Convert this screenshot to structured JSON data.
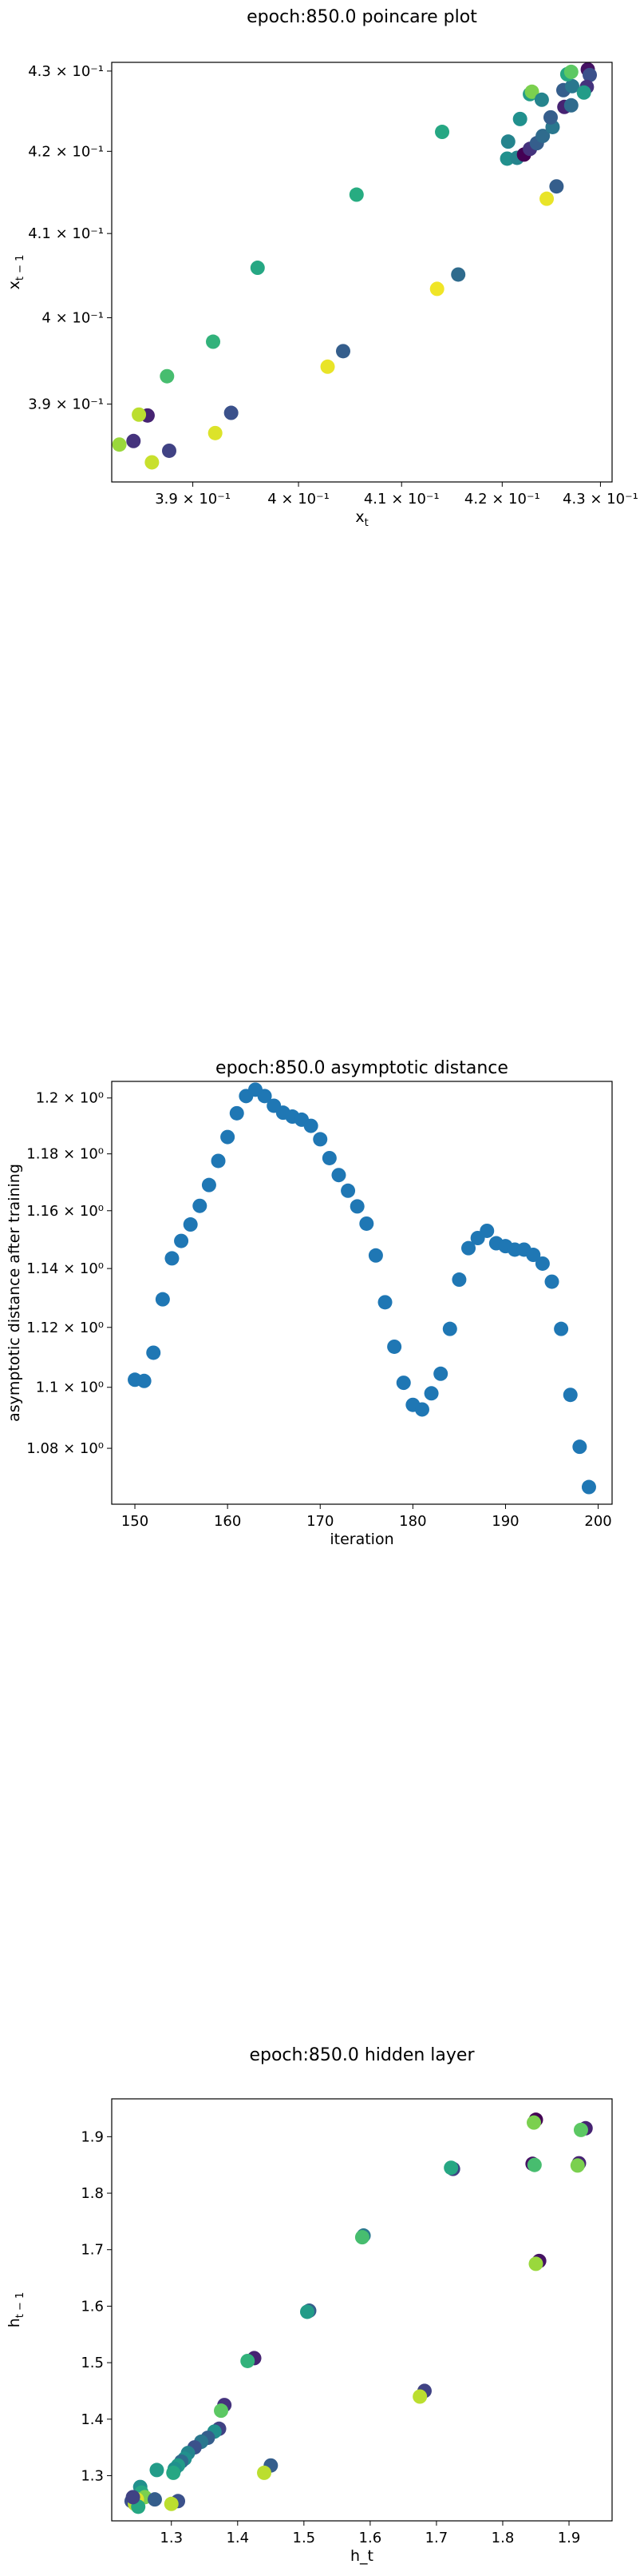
{
  "charts": [
    {
      "title": "epoch:850.0 poincare plot",
      "xlabel_base": "x",
      "xlabel_sub": "t",
      "ylabel_base": "x",
      "ylabel_sub": "t − 1",
      "xticks": [
        "3.9 × 10⁻¹",
        "4 × 10⁻¹",
        "4.1 × 10⁻¹",
        "4.2 × 10⁻¹",
        "4.3 × 10⁻¹"
      ],
      "yticks": [
        "4.3 × 10⁻¹",
        "4.2 × 10⁻¹",
        "4.1 × 10⁻¹",
        "4 × 10⁻¹",
        "3.9 × 10⁻¹"
      ]
    },
    {
      "title": "epoch:850.0 asymptotic distance",
      "xlabel": "iteration",
      "ylabel": "asymptotic distance after training",
      "xticks": [
        "150",
        "160",
        "170",
        "180",
        "190",
        "200"
      ],
      "yticks": [
        "1.2 × 10⁰",
        "1.18 × 10⁰",
        "1.16 × 10⁰",
        "1.14 × 10⁰",
        "1.12 × 10⁰",
        "1.1 × 10⁰",
        "1.08 × 10⁰"
      ]
    },
    {
      "title": "epoch:850.0 hidden layer",
      "xlabel": "h_t",
      "ylabel_base": "h",
      "ylabel_sub": "t − 1",
      "xticks": [
        "1.3",
        "1.4",
        "1.5",
        "1.6",
        "1.7",
        "1.8",
        "1.9"
      ],
      "yticks": [
        "1.9",
        "1.8",
        "1.7",
        "1.6",
        "1.5",
        "1.4",
        "1.3"
      ]
    }
  ],
  "chart_data": [
    {
      "type": "scatter",
      "title": "epoch:850.0 poincare plot",
      "xlabel": "x_t",
      "ylabel": "x_{t-1}",
      "xscale": "log",
      "yscale": "log",
      "xlim": [
        0.3825,
        0.4312
      ],
      "ylim": [
        0.3812,
        0.4311
      ],
      "colormap": "viridis",
      "points": [
        {
          "x": 0.3845,
          "y": 0.3858,
          "c": 0.15
        },
        {
          "x": 0.3858,
          "y": 0.3887,
          "c": 0.1
        },
        {
          "x": 0.3878,
          "y": 0.3847,
          "c": 0.2
        },
        {
          "x": 0.3832,
          "y": 0.3854,
          "c": 0.85
        },
        {
          "x": 0.385,
          "y": 0.3888,
          "c": 0.9
        },
        {
          "x": 0.3862,
          "y": 0.3834,
          "c": 0.92
        },
        {
          "x": 0.3876,
          "y": 0.3932,
          "c": 0.7
        },
        {
          "x": 0.3919,
          "y": 0.3972,
          "c": 0.65
        },
        {
          "x": 0.3921,
          "y": 0.3867,
          "c": 0.95
        },
        {
          "x": 0.3936,
          "y": 0.389,
          "c": 0.25
        },
        {
          "x": 0.3961,
          "y": 0.4059,
          "c": 0.6
        },
        {
          "x": 0.4028,
          "y": 0.3943,
          "c": 0.97
        },
        {
          "x": 0.4043,
          "y": 0.3961,
          "c": 0.3
        },
        {
          "x": 0.4056,
          "y": 0.4147,
          "c": 0.62
        },
        {
          "x": 0.4135,
          "y": 0.4034,
          "c": 0.98
        },
        {
          "x": 0.414,
          "y": 0.4224,
          "c": 0.6
        },
        {
          "x": 0.4156,
          "y": 0.4051,
          "c": 0.35
        },
        {
          "x": 0.4206,
          "y": 0.4212,
          "c": 0.45
        },
        {
          "x": 0.4205,
          "y": 0.4191,
          "c": 0.5
        },
        {
          "x": 0.4215,
          "y": 0.4192,
          "c": 0.45
        },
        {
          "x": 0.4222,
          "y": 0.4196,
          "c": 0.0
        },
        {
          "x": 0.4228,
          "y": 0.4203,
          "c": 0.15
        },
        {
          "x": 0.4235,
          "y": 0.421,
          "c": 0.3
        },
        {
          "x": 0.4241,
          "y": 0.4219,
          "c": 0.35
        },
        {
          "x": 0.4251,
          "y": 0.423,
          "c": 0.4
        },
        {
          "x": 0.4218,
          "y": 0.424,
          "c": 0.5
        },
        {
          "x": 0.4228,
          "y": 0.4271,
          "c": 0.55
        },
        {
          "x": 0.423,
          "y": 0.4274,
          "c": 0.8
        },
        {
          "x": 0.424,
          "y": 0.4264,
          "c": 0.45
        },
        {
          "x": 0.4262,
          "y": 0.4276,
          "c": 0.3
        },
        {
          "x": 0.4271,
          "y": 0.4281,
          "c": 0.4
        },
        {
          "x": 0.4266,
          "y": 0.4296,
          "c": 0.6
        },
        {
          "x": 0.427,
          "y": 0.4299,
          "c": 0.75
        },
        {
          "x": 0.4287,
          "y": 0.4302,
          "c": 0.05
        },
        {
          "x": 0.4289,
          "y": 0.4295,
          "c": 0.25
        },
        {
          "x": 0.4286,
          "y": 0.428,
          "c": 0.15
        },
        {
          "x": 0.4283,
          "y": 0.4273,
          "c": 0.55
        },
        {
          "x": 0.4263,
          "y": 0.4255,
          "c": 0.1
        },
        {
          "x": 0.427,
          "y": 0.4257,
          "c": 0.35
        },
        {
          "x": 0.4249,
          "y": 0.4242,
          "c": 0.3
        },
        {
          "x": 0.4255,
          "y": 0.4157,
          "c": 0.3
        },
        {
          "x": 0.4245,
          "y": 0.4142,
          "c": 0.97
        }
      ]
    },
    {
      "type": "scatter",
      "title": "epoch:850.0 asymptotic distance",
      "xlabel": "iteration",
      "ylabel": "asymptotic distance after training",
      "yscale": "log",
      "xlim": [
        147.5,
        201.5
      ],
      "ylim": [
        1.062,
        1.206
      ],
      "color": "#1f77b4",
      "x": [
        150,
        151,
        152,
        153,
        154,
        155,
        156,
        157,
        158,
        159,
        160,
        161,
        162,
        163,
        164,
        165,
        166,
        167,
        168,
        169,
        170,
        171,
        172,
        173,
        174,
        175,
        176,
        177,
        178,
        179,
        180,
        181,
        182,
        183,
        184,
        185,
        186,
        187,
        188,
        189,
        190,
        191,
        192,
        193,
        194,
        195,
        196,
        197,
        198,
        199
      ],
      "y": [
        1.1025,
        1.1021,
        1.1115,
        1.1295,
        1.1435,
        1.1495,
        1.1552,
        1.1617,
        1.169,
        1.1775,
        1.186,
        1.1945,
        1.2007,
        1.203,
        1.2007,
        1.1972,
        1.1947,
        1.1933,
        1.1922,
        1.19,
        1.1852,
        1.1785,
        1.1725,
        1.167,
        1.1615,
        1.1555,
        1.1445,
        1.1285,
        1.1135,
        1.1015,
        1.0942,
        1.0927,
        1.098,
        1.1045,
        1.1195,
        1.1362,
        1.147,
        1.1505,
        1.153,
        1.1487,
        1.1477,
        1.1465,
        1.1465,
        1.1447,
        1.1417,
        1.1355,
        1.1195,
        1.0975,
        1.0805,
        1.0675
      ]
    },
    {
      "type": "scatter",
      "title": "epoch:850.0 hidden layer",
      "xlabel": "h_t",
      "ylabel": "h_{t-1}",
      "xlim": [
        1.21,
        1.965
      ],
      "ylim": [
        1.22,
        1.967
      ],
      "colormap": "viridis",
      "points": [
        {
          "x": 1.85,
          "y": 1.93,
          "c": 0.0
        },
        {
          "x": 1.847,
          "y": 1.925,
          "c": 0.8
        },
        {
          "x": 1.925,
          "y": 1.915,
          "c": 0.1
        },
        {
          "x": 1.918,
          "y": 1.912,
          "c": 0.75
        },
        {
          "x": 1.845,
          "y": 1.852,
          "c": 0.05
        },
        {
          "x": 1.848,
          "y": 1.85,
          "c": 0.7
        },
        {
          "x": 1.915,
          "y": 1.853,
          "c": 0.1
        },
        {
          "x": 1.913,
          "y": 1.849,
          "c": 0.8
        },
        {
          "x": 1.725,
          "y": 1.843,
          "c": 0.2
        },
        {
          "x": 1.722,
          "y": 1.845,
          "c": 0.6
        },
        {
          "x": 1.59,
          "y": 1.725,
          "c": 0.4
        },
        {
          "x": 1.588,
          "y": 1.722,
          "c": 0.7
        },
        {
          "x": 1.855,
          "y": 1.68,
          "c": 0.05
        },
        {
          "x": 1.85,
          "y": 1.675,
          "c": 0.85
        },
        {
          "x": 1.508,
          "y": 1.592,
          "c": 0.3
        },
        {
          "x": 1.505,
          "y": 1.59,
          "c": 0.55
        },
        {
          "x": 1.682,
          "y": 1.45,
          "c": 0.2
        },
        {
          "x": 1.675,
          "y": 1.44,
          "c": 0.9
        },
        {
          "x": 1.425,
          "y": 1.508,
          "c": 0.1
        },
        {
          "x": 1.415,
          "y": 1.503,
          "c": 0.65
        },
        {
          "x": 1.38,
          "y": 1.425,
          "c": 0.15
        },
        {
          "x": 1.375,
          "y": 1.415,
          "c": 0.75
        },
        {
          "x": 1.372,
          "y": 1.383,
          "c": 0.2
        },
        {
          "x": 1.365,
          "y": 1.378,
          "c": 0.5
        },
        {
          "x": 1.355,
          "y": 1.367,
          "c": 0.3
        },
        {
          "x": 1.345,
          "y": 1.36,
          "c": 0.4
        },
        {
          "x": 1.335,
          "y": 1.35,
          "c": 0.25
        },
        {
          "x": 1.325,
          "y": 1.34,
          "c": 0.45
        },
        {
          "x": 1.32,
          "y": 1.33,
          "c": 0.5
        },
        {
          "x": 1.315,
          "y": 1.325,
          "c": 0.35
        },
        {
          "x": 1.31,
          "y": 1.318,
          "c": 0.55
        },
        {
          "x": 1.305,
          "y": 1.312,
          "c": 0.5
        },
        {
          "x": 1.303,
          "y": 1.305,
          "c": 0.6
        },
        {
          "x": 1.45,
          "y": 1.318,
          "c": 0.3
        },
        {
          "x": 1.44,
          "y": 1.305,
          "c": 0.9
        },
        {
          "x": 1.278,
          "y": 1.31,
          "c": 0.55
        },
        {
          "x": 1.253,
          "y": 1.28,
          "c": 0.5
        },
        {
          "x": 1.255,
          "y": 1.27,
          "c": 0.6
        },
        {
          "x": 1.26,
          "y": 1.262,
          "c": 0.8
        },
        {
          "x": 1.248,
          "y": 1.258,
          "c": 0.95
        },
        {
          "x": 1.24,
          "y": 1.255,
          "c": 0.25
        },
        {
          "x": 1.245,
          "y": 1.25,
          "c": 0.9
        },
        {
          "x": 1.25,
          "y": 1.245,
          "c": 0.6
        },
        {
          "x": 1.275,
          "y": 1.258,
          "c": 0.3
        },
        {
          "x": 1.31,
          "y": 1.255,
          "c": 0.25
        },
        {
          "x": 1.3,
          "y": 1.25,
          "c": 0.9
        },
        {
          "x": 1.242,
          "y": 1.262,
          "c": 0.2
        }
      ]
    }
  ]
}
